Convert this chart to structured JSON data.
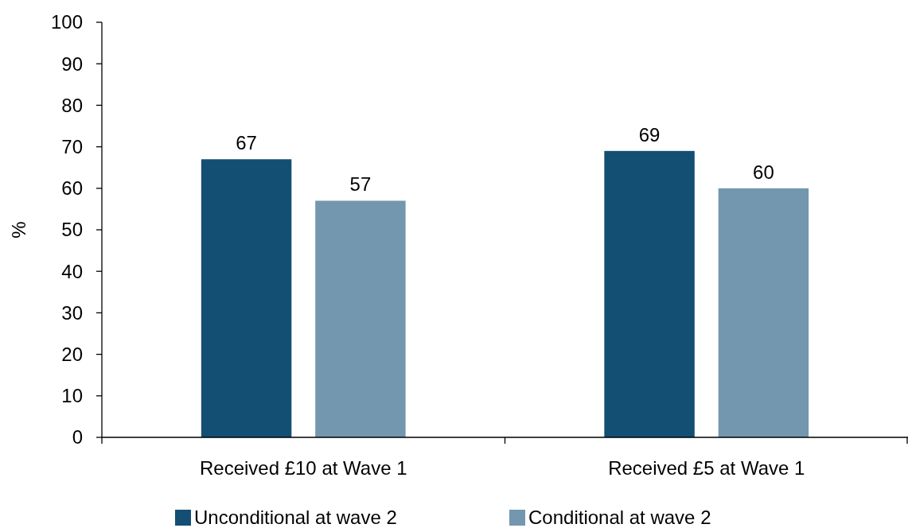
{
  "chart_data": {
    "type": "bar",
    "ylabel": "%",
    "categories": [
      "Received £10 at Wave 1",
      "Received £5 at Wave 1"
    ],
    "series": [
      {
        "name": "Unconditional at wave 2",
        "color": "#134f73",
        "values": [
          67,
          69
        ]
      },
      {
        "name": "Conditional at wave 2",
        "color": "#7297ae",
        "values": [
          57,
          60
        ]
      }
    ],
    "ylim": [
      0,
      100
    ],
    "yticks": [
      0,
      10,
      20,
      30,
      40,
      50,
      60,
      70,
      80,
      90,
      100
    ],
    "data_labels": true,
    "grid": false,
    "legend": "bottom"
  }
}
